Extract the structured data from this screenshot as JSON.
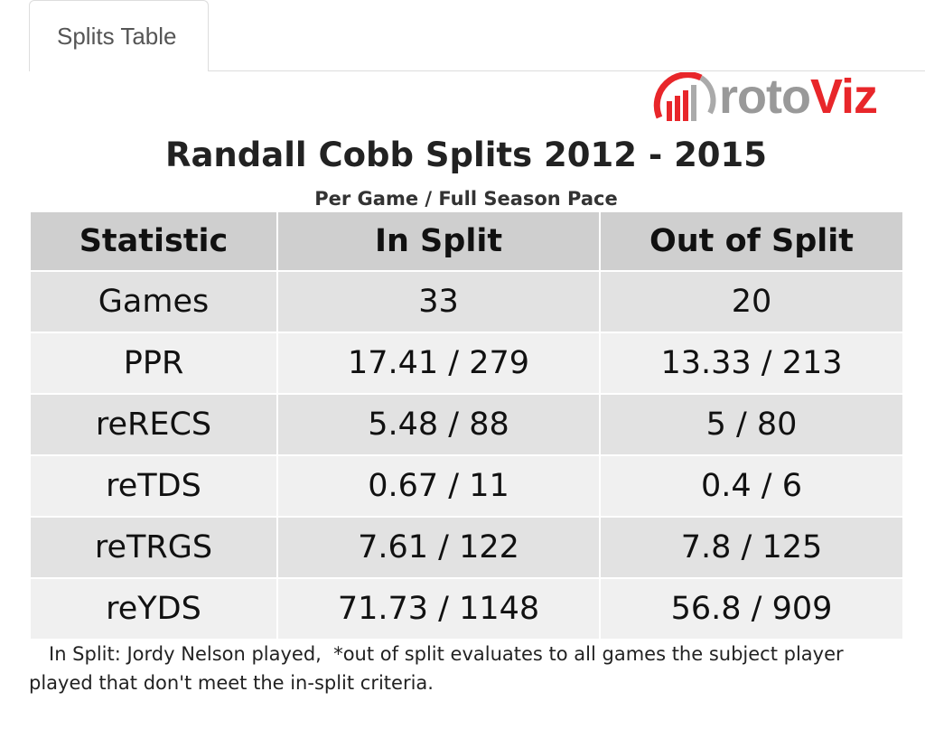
{
  "tab": {
    "label": "Splits Table"
  },
  "logo": {
    "text_a": "roto",
    "text_b": "Viz"
  },
  "title": "Randall Cobb Splits 2012 - 2015",
  "subtitle": "Per Game / Full Season Pace",
  "table": {
    "headers": [
      "Statistic",
      "In Split",
      "Out of Split"
    ],
    "rows": [
      [
        "Games",
        "33",
        "20"
      ],
      [
        "PPR",
        "17.41 / 279",
        "13.33 / 213"
      ],
      [
        "reRECS",
        "5.48 / 88",
        "5 / 80"
      ],
      [
        "reTDS",
        "0.67 / 11",
        "0.4 / 6"
      ],
      [
        "reTRGS",
        "7.61 / 122",
        "7.8 / 125"
      ],
      [
        "reYDS",
        "71.73 / 1148",
        "56.8 / 909"
      ]
    ]
  },
  "note": "In Split: Jordy Nelson played,  *out of split evaluates to all games the subject player played that don't meet the in-split criteria."
}
